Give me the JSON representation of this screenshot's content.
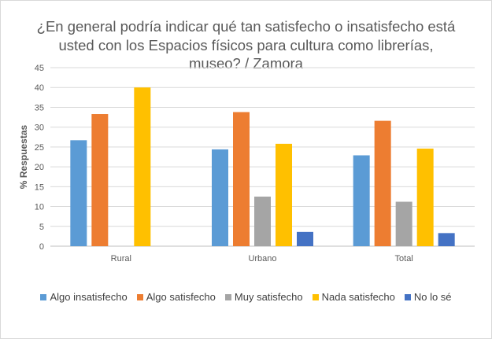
{
  "chart_data": {
    "type": "bar",
    "title": "¿En general podría indicar qué tan satisfecho o insatisfecho está usted con los Espacios físicos para cultura como librerías, museo? / Zamora",
    "xlabel": "",
    "ylabel": "% Respuestas",
    "ylim": [
      0,
      45
    ],
    "yticks": [
      "0",
      "5",
      "10",
      "15",
      "20",
      "25",
      "30",
      "35",
      "40",
      "45"
    ],
    "grid": true,
    "legend_position": "bottom",
    "categories": [
      "Rural",
      "Urbano",
      "Total"
    ],
    "series": [
      {
        "name": "Algo insatisfecho",
        "color": "#5b9bd5",
        "values": [
          26.7,
          24.4,
          22.9
        ]
      },
      {
        "name": "Algo satisfecho",
        "color": "#ed7d31",
        "values": [
          33.3,
          33.8,
          31.6
        ]
      },
      {
        "name": "Muy satisfecho",
        "color": "#a5a5a5",
        "values": [
          0,
          12.5,
          11.2
        ]
      },
      {
        "name": "Nada satisfecho",
        "color": "#ffc000",
        "values": [
          40.0,
          25.8,
          24.6
        ]
      },
      {
        "name": "No lo sé",
        "color": "#4472c4",
        "values": [
          0,
          3.6,
          3.3
        ]
      }
    ]
  }
}
